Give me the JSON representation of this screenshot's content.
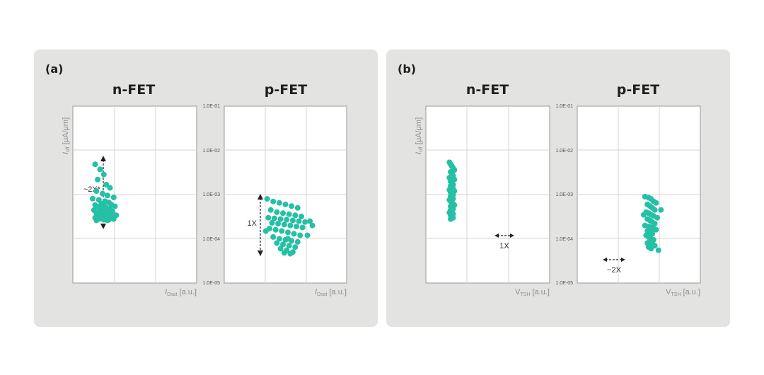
{
  "panels": [
    {
      "label": "(a)"
    },
    {
      "label": "(b)"
    }
  ],
  "colors": {
    "marker": "#25c0a5",
    "panel_bg": "#e3e3e2",
    "grid": "#d4d4d4"
  },
  "y_axis_label": {
    "main": "I",
    "sub": "off",
    "unit": " [μA/μm]"
  },
  "chart_data": [
    {
      "panel": "(a)",
      "type": "scatter",
      "title": "n-FET",
      "xlabel": {
        "main": "I",
        "sub": "Dsat",
        "unit": " [a.u.]"
      },
      "ylabel": "I_off [μA/μm]",
      "annotation": {
        "text": "~2X*",
        "orientation": "vertical"
      },
      "series": [
        {
          "x": [
            0.18,
            0.22,
            0.25,
            0.2,
            0.27,
            0.3,
            0.19,
            0.24,
            0.28,
            0.33,
            0.16,
            0.21,
            0.26,
            0.29,
            0.23,
            0.31,
            0.18,
            0.25,
            0.34,
            0.2,
            0.27,
            0.22,
            0.3,
            0.24,
            0.17,
            0.28,
            0.32,
            0.21,
            0.26,
            0.23,
            0.19,
            0.29,
            0.25,
            0.35,
            0.22,
            0.28,
            0.2,
            0.31,
            0.24,
            0.27,
            0.18,
            0.3,
            0.23,
            0.26,
            0.33,
            0.21,
            0.25,
            0.29,
            0.19,
            0.28
          ],
          "y": [
            0.92,
            0.84,
            0.76,
            0.68,
            0.6,
            0.55,
            0.5,
            0.46,
            0.43,
            0.4,
            0.38,
            0.36,
            0.34,
            0.32,
            0.3,
            0.29,
            0.28,
            0.27,
            0.26,
            0.25,
            0.24,
            0.23,
            0.22,
            0.21,
            0.2,
            0.19,
            0.18,
            0.17,
            0.16,
            0.15,
            0.15,
            0.14,
            0.13,
            0.12,
            0.12,
            0.11,
            0.1,
            0.1,
            0.09,
            0.09,
            0.08,
            0.08,
            0.07,
            0.07,
            0.06,
            0.06,
            0.05,
            0.05,
            0.04,
            0.04
          ]
        }
      ]
    },
    {
      "panel": "(a)",
      "type": "scatter",
      "title": "p-FET",
      "xlabel": {
        "main": "I",
        "sub": "Dsat",
        "unit": " [a.u.]"
      },
      "yscale": "log",
      "ylim": [
        1e-05,
        0.1
      ],
      "yticks": [
        "1.0E-01",
        "1.0E-02",
        "1.0E-03",
        "1.0E-04",
        "1.0E-05"
      ],
      "annotation": {
        "text": "1X",
        "orientation": "vertical"
      },
      "series": [
        {
          "x": [
            0.35,
            0.4,
            0.45,
            0.5,
            0.55,
            0.6,
            0.38,
            0.43,
            0.48,
            0.53,
            0.58,
            0.63,
            0.36,
            0.41,
            0.46,
            0.51,
            0.56,
            0.61,
            0.66,
            0.39,
            0.44,
            0.49,
            0.54,
            0.59,
            0.64,
            0.37,
            0.42,
            0.47,
            0.52,
            0.57,
            0.62,
            0.4,
            0.45,
            0.5,
            0.55,
            0.6,
            0.43,
            0.48,
            0.53,
            0.58,
            0.46,
            0.51,
            0.56,
            0.49,
            0.54,
            0.7,
            0.72,
            0.34,
            0.68,
            0.52
          ],
          "y": [
            0.0008,
            0.0007,
            0.00065,
            0.0006,
            0.00055,
            0.0005,
            0.00045,
            0.0004,
            0.00038,
            0.00036,
            0.00034,
            0.00032,
            0.0003,
            0.00029,
            0.00028,
            0.00027,
            0.00026,
            0.00025,
            0.00024,
            0.00023,
            0.00022,
            0.00021,
            0.0002,
            0.00019,
            0.00018,
            0.00017,
            0.00016,
            0.00015,
            0.00014,
            0.00013,
            0.00012,
            0.00011,
            0.0001,
            9.5e-05,
            9e-05,
            8.5e-05,
            8e-05,
            7.5e-05,
            7e-05,
            6.5e-05,
            6e-05,
            5.5e-05,
            5e-05,
            4.8e-05,
            4.6e-05,
            0.00025,
            0.0002,
            0.00015,
            0.00012,
            0.0001
          ]
        }
      ]
    },
    {
      "panel": "(b)",
      "type": "scatter",
      "title": "n-FET",
      "xlabel": {
        "main": "V",
        "sub": "TSH",
        "unit": " [a.u.]"
      },
      "ylabel": "I_off [μA/μm]",
      "annotation": {
        "text": "1X",
        "orientation": "horizontal"
      },
      "series": [
        {
          "x": [
            0.19,
            0.2,
            0.21,
            0.22,
            0.23,
            0.2,
            0.21,
            0.22,
            0.19,
            0.23,
            0.2,
            0.21,
            0.22,
            0.2,
            0.21,
            0.22,
            0.19,
            0.23,
            0.2,
            0.21,
            0.22,
            0.2,
            0.21,
            0.22,
            0.19,
            0.2,
            0.21,
            0.22,
            0.23,
            0.2,
            0.21,
            0.22,
            0.2,
            0.21,
            0.19,
            0.22,
            0.2,
            0.21,
            0.22,
            0.2
          ],
          "y": [
            0.95,
            0.92,
            0.89,
            0.86,
            0.83,
            0.8,
            0.77,
            0.74,
            0.71,
            0.68,
            0.65,
            0.62,
            0.6,
            0.58,
            0.56,
            0.54,
            0.52,
            0.5,
            0.48,
            0.46,
            0.44,
            0.42,
            0.4,
            0.38,
            0.36,
            0.34,
            0.32,
            0.3,
            0.28,
            0.26,
            0.24,
            0.22,
            0.2,
            0.18,
            0.16,
            0.14,
            0.12,
            0.1,
            0.08,
            0.06
          ]
        }
      ]
    },
    {
      "panel": "(b)",
      "type": "scatter",
      "title": "p-FET",
      "xlabel": {
        "main": "V",
        "sub": "TSH",
        "unit": " [a.u.]"
      },
      "yscale": "log",
      "ylim": [
        1e-05,
        0.1
      ],
      "yticks": [
        "1.0E-01",
        "1.0E-02",
        "1.0E-03",
        "1.0E-04",
        "1.0E-05"
      ],
      "annotation": {
        "text": "~2X",
        "orientation": "horizontal"
      },
      "series": [
        {
          "x": [
            0.55,
            0.58,
            0.6,
            0.62,
            0.64,
            0.57,
            0.59,
            0.61,
            0.63,
            0.56,
            0.58,
            0.6,
            0.62,
            0.65,
            0.57,
            0.59,
            0.61,
            0.63,
            0.55,
            0.58,
            0.6,
            0.62,
            0.64,
            0.57,
            0.59,
            0.61,
            0.56,
            0.58,
            0.6,
            0.62,
            0.59,
            0.61,
            0.57,
            0.6,
            0.63,
            0.58,
            0.6,
            0.66,
            0.68,
            0.54
          ],
          "y": [
            0.0009,
            0.00085,
            0.0008,
            0.0007,
            0.00065,
            0.0006,
            0.00055,
            0.0005,
            0.00045,
            0.0004,
            0.00038,
            0.00035,
            0.00033,
            0.0003,
            0.00028,
            0.00026,
            0.00024,
            0.00022,
            0.0002,
            0.00019,
            0.00018,
            0.00017,
            0.00016,
            0.00015,
            0.00014,
            0.00013,
            0.00012,
            0.00011,
            0.0001,
            9.5e-05,
            9e-05,
            8.5e-05,
            8e-05,
            7.5e-05,
            7e-05,
            6.5e-05,
            6e-05,
            5.5e-05,
            0.00045,
            0.00035
          ]
        }
      ]
    }
  ]
}
